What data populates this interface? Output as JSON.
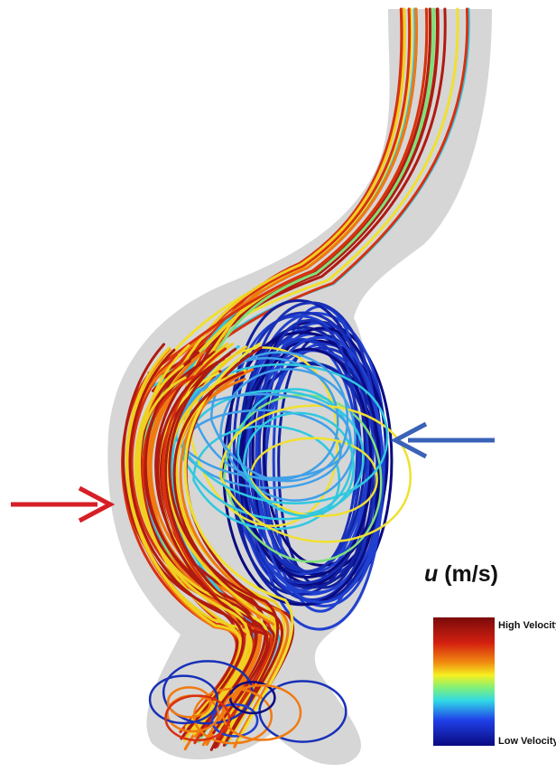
{
  "legend": {
    "symbol": "u",
    "unit": "(m/s)",
    "high_label": "High Velocity",
    "low_label": "Low Velocity"
  }
}
